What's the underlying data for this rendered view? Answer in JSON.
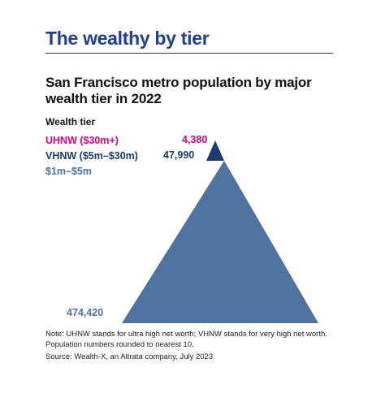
{
  "header": {
    "headline": "The wealthy by tier"
  },
  "chart_data": {
    "type": "pyramid",
    "title": "San Francisco metro population by major wealth tier in 2022",
    "legend_title": "Wealth tier",
    "legend_placement": "top-left",
    "series": [
      {
        "name": "UHNW ($30m+)",
        "value": 4380,
        "label": "4,380",
        "color": "#e6007e"
      },
      {
        "name": "VHNW ($5m–$30m)",
        "value": 47990,
        "label": "47,990",
        "color": "#1b3b6f"
      },
      {
        "name": "$1m–$5m",
        "value": 474420,
        "label": "474,420",
        "color": "#4f729e"
      }
    ],
    "segment_colors": [
      "#1b3b6f",
      "#2d4f83",
      "#4f729e"
    ],
    "note": "Note: UHNW stands for ultra high net worth; VHNW stands for very high net worth. Population numbers rounded to nearest 10.",
    "source": "Source: Wealth-X, an Altrata company, July 2023"
  }
}
